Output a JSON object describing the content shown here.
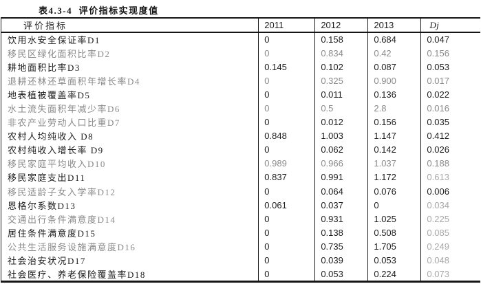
{
  "title": "表4.3-4  评价指标实现度值",
  "colors": {
    "text": "#1c1c1c",
    "muted_ink": "#8a8a8a",
    "light_dj_ink": "#a8a8a8",
    "rule": "#151515",
    "background": "#ffffff"
  },
  "table": {
    "columns": [
      "评价指标",
      "2011",
      "2012",
      "2013",
      "Dj"
    ],
    "rows": [
      {
        "label": "饮用水安全保证率D1",
        "v2011": "0",
        "v2012": "0.158",
        "v2013": "0.684",
        "dj": "0.047"
      },
      {
        "label": "移民区绿化面积比率D2",
        "v2011": "0",
        "v2012": "0.834",
        "v2013": "0.42",
        "dj": "0.156",
        "muted": true
      },
      {
        "label": "耕地面积比率D3",
        "v2011": "0.145",
        "v2012": "0.102",
        "v2013": "0.087",
        "dj": "0.053"
      },
      {
        "label": "退耕还林还草面积年增长率D4",
        "v2011": "0",
        "v2012": "0.325",
        "v2013": "0.900",
        "dj": "0.017",
        "muted": true
      },
      {
        "label": "地表植被覆盖率D5",
        "v2011": "0",
        "v2012": "0.011",
        "v2013": "0.136",
        "dj": "0.022"
      },
      {
        "label": "水土流失面积年减少率D6",
        "v2011": "0",
        "v2012": "0.5",
        "v2013": "2.8",
        "dj": "0.016",
        "muted": true
      },
      {
        "label": "非农产业劳动人口比重D7",
        "v2011": "0",
        "v2012": "0.012",
        "v2013": "0.156",
        "dj": "0.035",
        "label_muted": true
      },
      {
        "label": "农村人均纯收入 D8",
        "v2011": "0.848",
        "v2012": "1.003",
        "v2013": "1.147",
        "dj": "0.412"
      },
      {
        "label": "农村纯收入增长率 D9",
        "v2011": "0",
        "v2012": "0.062",
        "v2013": "0.142",
        "dj": "0.026"
      },
      {
        "label": "移民家庭平均收入D10",
        "v2011": "0.989",
        "v2012": "0.966",
        "v2013": "1.037",
        "dj": "0.188",
        "muted": true
      },
      {
        "label": "移民家庭支出D11",
        "v2011": "0.837",
        "v2012": "0.991",
        "v2013": "1.172",
        "dj": "0.613",
        "dj_muted": true
      },
      {
        "label": "移民适龄子女入学率D12",
        "v2011": "0",
        "v2012": "0.064",
        "v2013": "0.076",
        "dj": "0.006",
        "label_muted": true
      },
      {
        "label": "恩格尔系数D13",
        "v2011": "0.061",
        "v2012": "0.037",
        "v2013": "0",
        "dj": "0.034",
        "dj_muted": true
      },
      {
        "label": "交通出行条件满意度D14",
        "v2011": "0",
        "v2012": "0.931",
        "v2013": "1.025",
        "dj": "0.225",
        "label_muted": true,
        "dj_muted": true
      },
      {
        "label": "居住条件满意度D15",
        "v2011": "0",
        "v2012": "0.138",
        "v2013": "0.508",
        "dj": "0.085",
        "dj_muted": true
      },
      {
        "label": "公共生活服务设施满意度D16",
        "v2011": "0",
        "v2012": "0.735",
        "v2013": "1.705",
        "dj": "0.249",
        "label_muted": true,
        "dj_muted": true
      },
      {
        "label": "社会治安状况D17",
        "v2011": "0",
        "v2012": "0.039",
        "v2013": "0.053",
        "dj": "0.048",
        "dj_muted": true
      },
      {
        "label": "社会医疗、养老保险覆盖率D18",
        "v2011": "0",
        "v2012": "0.053",
        "v2013": "0.224",
        "dj": "0.073",
        "dj_muted": true
      }
    ]
  }
}
